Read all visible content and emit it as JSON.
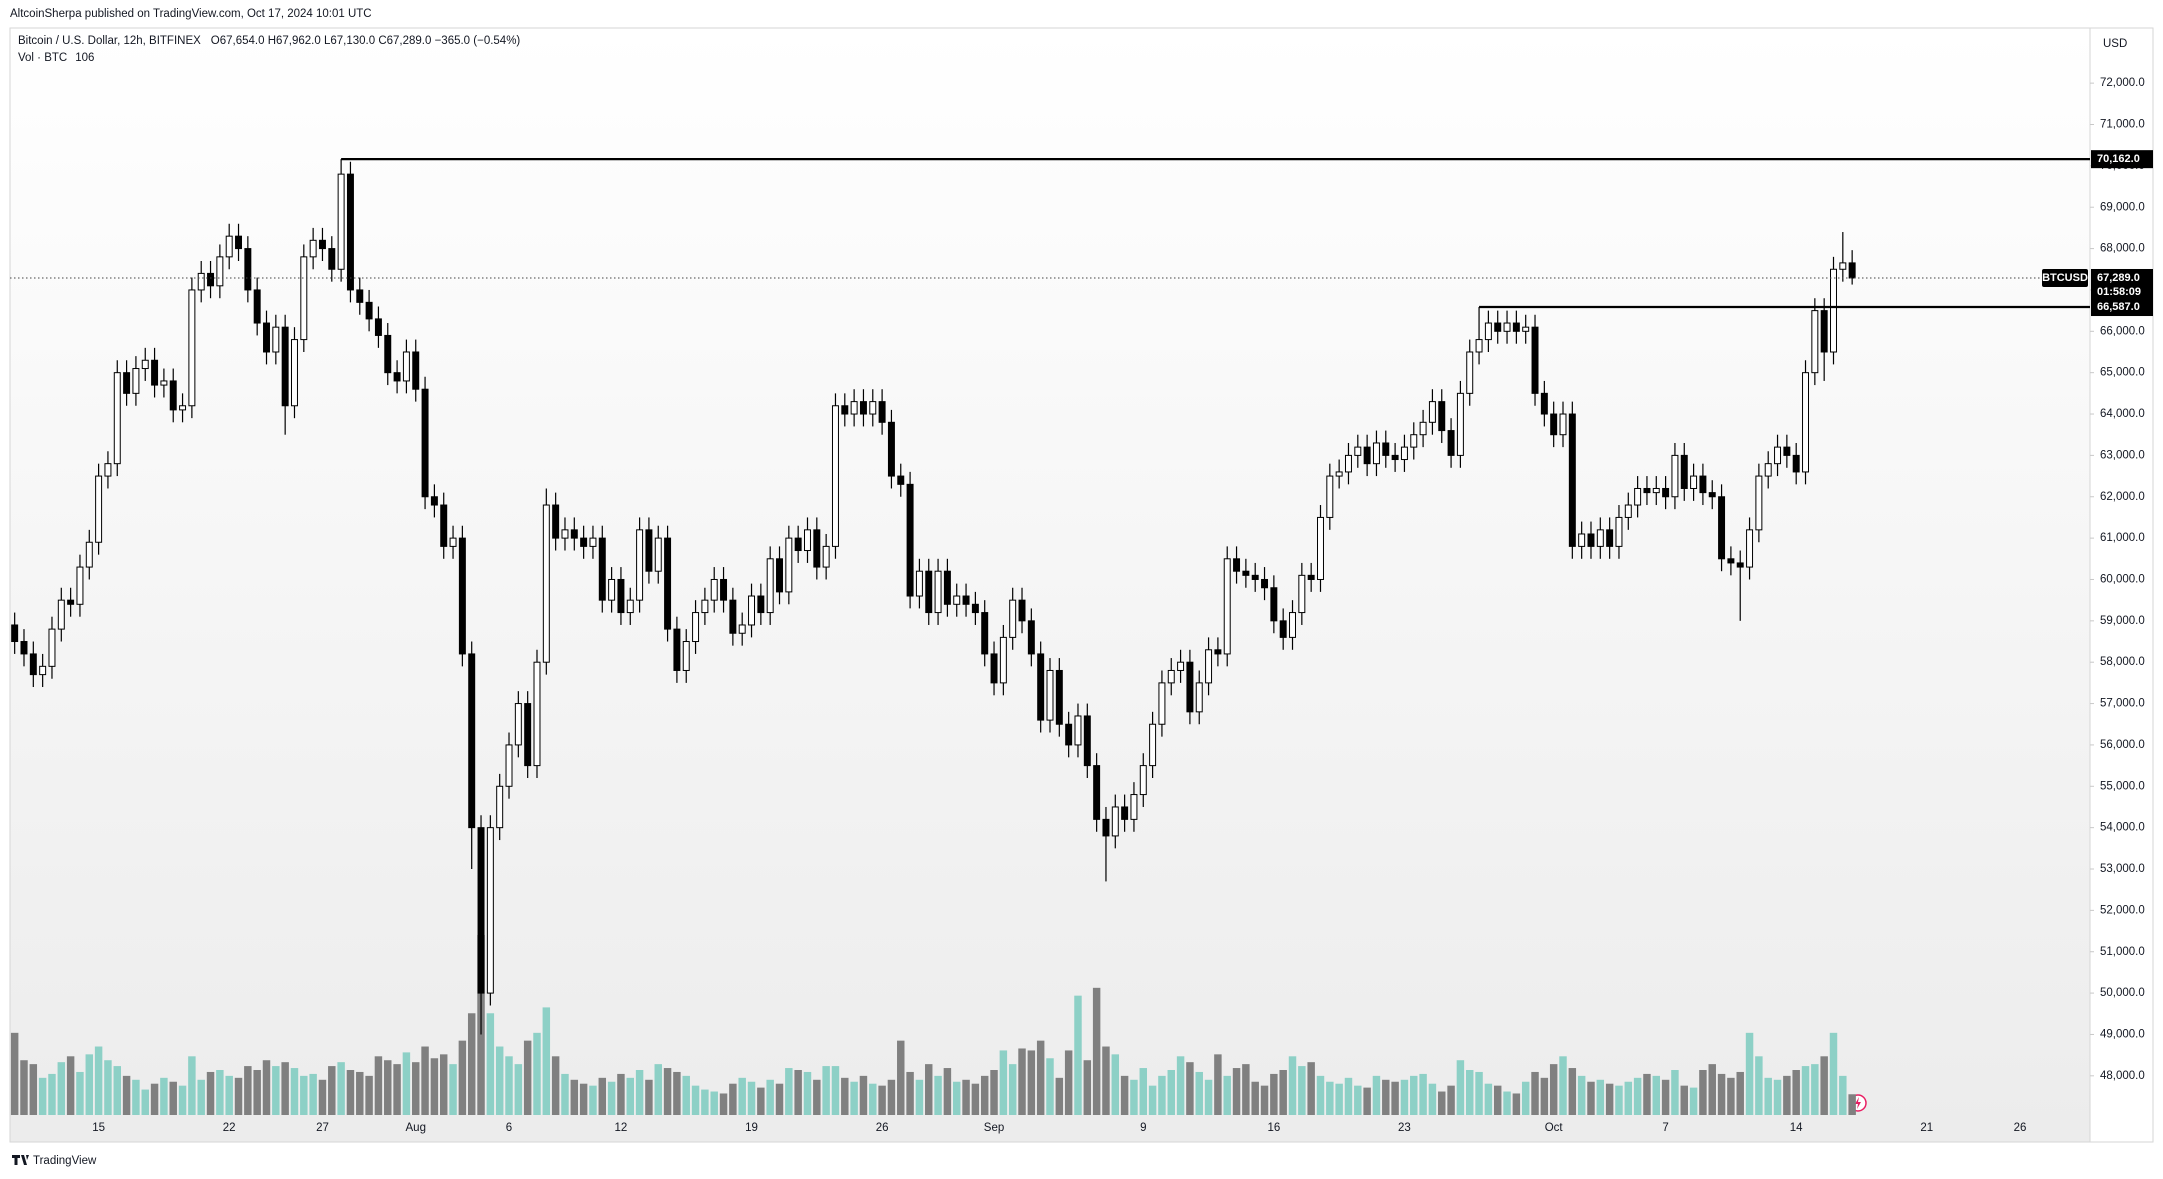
{
  "chart_data": {
    "type": "candlestick",
    "header": "AltcoinSherpa published on TradingView.com, Oct 17, 2024 10:01 UTC",
    "symbol": "Bitcoin / U.S. Dollar, 12h, BITFINEX",
    "ohlc_text": "O67,654.0 H67,962.0 L67,130.0 C67,289.0 −365.0 (−0.54%)",
    "volume_label": "Vol · BTC",
    "currency": "USD",
    "footer": "TradingView",
    "up_color": "#ffffff",
    "down_color": "#000000",
    "volume_up_color": "#8dd0c6",
    "volume_down_color": "#808080",
    "grid": false,
    "ylim": [
      46400,
      73333
    ],
    "yticks": [
      {
        "value": 48000,
        "label": "48,000.0"
      },
      {
        "value": 49000,
        "label": "49,000.0"
      },
      {
        "value": 50000,
        "label": "50,000.0"
      },
      {
        "value": 51000,
        "label": "51,000.0"
      },
      {
        "value": 52000,
        "label": "52,000.0"
      },
      {
        "value": 53000,
        "label": "53,000.0"
      },
      {
        "value": 54000,
        "label": "54,000.0"
      },
      {
        "value": 55000,
        "label": "55,000.0"
      },
      {
        "value": 56000,
        "label": "56,000.0"
      },
      {
        "value": 57000,
        "label": "57,000.0"
      },
      {
        "value": 58000,
        "label": "58,000.0"
      },
      {
        "value": 59000,
        "label": "59,000.0"
      },
      {
        "value": 60000,
        "label": "60,000.0"
      },
      {
        "value": 61000,
        "label": "61,000.0"
      },
      {
        "value": 62000,
        "label": "62,000.0"
      },
      {
        "value": 63000,
        "label": "63,000.0"
      },
      {
        "value": 64000,
        "label": "64,000.0"
      },
      {
        "value": 65000,
        "label": "65,000.0"
      },
      {
        "value": 66000,
        "label": "66,000.0"
      },
      {
        "value": 67000,
        "label": "67,000.0"
      },
      {
        "value": 68000,
        "label": "68,000.0"
      },
      {
        "value": 69000,
        "label": "69,000.0"
      },
      {
        "value": 70000,
        "label": "70,000.0"
      },
      {
        "value": 71000,
        "label": "71,000.0"
      },
      {
        "value": 72000,
        "label": "72,000.0"
      }
    ],
    "levels": [
      {
        "value": 70162,
        "label": "70,162.0"
      },
      {
        "value": 66587,
        "label": "66,587.0"
      }
    ],
    "last_price": {
      "name": "BTCUSD",
      "value": 67289,
      "label": "67,289.0",
      "countdown": "01:58:09"
    },
    "categories": [
      null,
      null,
      null,
      null,
      null,
      null,
      null,
      null,
      null,
      "15",
      null,
      null,
      null,
      null,
      null,
      null,
      null,
      null,
      null,
      null,
      null,
      null,
      null,
      "22",
      null,
      null,
      null,
      null,
      null,
      null,
      null,
      null,
      null,
      "27",
      null,
      null,
      null,
      null,
      null,
      null,
      null,
      null,
      null,
      "Aug",
      null,
      null,
      null,
      null,
      null,
      null,
      null,
      null,
      null,
      "6",
      null,
      null,
      null,
      null,
      null,
      null,
      null,
      null,
      null,
      null,
      null,
      "12",
      null,
      null,
      null,
      null,
      null,
      null,
      null,
      null,
      null,
      null,
      null,
      null,
      null,
      "19",
      null,
      null,
      null,
      null,
      null,
      null,
      null,
      null,
      null,
      null,
      null,
      null,
      null,
      "26",
      null,
      null,
      null,
      null,
      null,
      null,
      null,
      null,
      null,
      null,
      null,
      "Sep",
      null,
      null,
      null,
      null,
      null,
      null,
      null,
      null,
      null,
      null,
      null,
      null,
      null,
      null,
      null,
      "9",
      null,
      null,
      null,
      null,
      null,
      null,
      null,
      null,
      null,
      null,
      null,
      null,
      null,
      "16",
      null,
      null,
      null,
      null,
      null,
      null,
      null,
      null,
      null,
      null,
      null,
      null,
      null,
      "23",
      null,
      null,
      null,
      null,
      null,
      null,
      null,
      null,
      null,
      null,
      null,
      null,
      null,
      null,
      null,
      "Oct",
      null,
      null,
      null,
      null,
      null,
      null,
      null,
      null,
      null,
      null,
      null,
      "7",
      null,
      null,
      null,
      null,
      null,
      null,
      null,
      null,
      null,
      null,
      null,
      null,
      null,
      "14",
      null,
      null,
      null,
      null,
      null,
      null,
      null,
      null,
      null,
      null,
      null,
      null,
      null,
      "21",
      null,
      null,
      null,
      null,
      null,
      null,
      null,
      null,
      null,
      "26",
      null,
      null,
      null,
      null,
      null,
      null,
      null
    ],
    "open": [
      58900,
      58500,
      58200,
      57700,
      57900,
      58800,
      59500,
      59400,
      60300,
      60900,
      62500,
      62800,
      65000,
      64500,
      65100,
      65300,
      64700,
      64800,
      64100,
      64200,
      67000,
      67400,
      67100,
      67800,
      68300,
      68000,
      67000,
      66200,
      65500,
      66100,
      64200,
      65800,
      67800,
      68200,
      68000,
      67500,
      69800,
      67000,
      66700,
      66300,
      65900,
      65000,
      64800,
      65500,
      64600,
      62000,
      61800,
      60800,
      61000,
      58200,
      54000,
      50000,
      54000,
      55000,
      56000,
      57000,
      55500,
      58000,
      61800,
      61000,
      61200,
      61000,
      60800,
      61000,
      59500,
      60000,
      59200,
      59500,
      61200,
      60200,
      61000,
      58800,
      57800,
      58500,
      59200,
      59500,
      60000,
      59500,
      58700,
      58900,
      59600,
      59200,
      60500,
      59700,
      61000,
      60700,
      61200,
      60300,
      60800,
      64200,
      64000,
      64300,
      64000,
      64300,
      63800,
      62500,
      62300,
      59600,
      60200,
      59200,
      60200,
      59400,
      59600,
      59400,
      59200,
      58200,
      57500,
      58600,
      59500,
      59000,
      58200,
      56600,
      57800,
      56500,
      56000,
      56700,
      55500,
      54200,
      53800,
      54500,
      54200,
      54800,
      55500,
      56500,
      57500,
      57800,
      58000,
      56800,
      57500,
      58300,
      58200,
      60500,
      60200,
      60100,
      60000,
      59800,
      59000,
      58600,
      59200,
      60100,
      60000,
      61500,
      62500,
      62600,
      63000,
      63200,
      62800,
      63300,
      63000,
      62900,
      63200,
      63500,
      63800,
      64300,
      63600,
      63000,
      64500,
      65500,
      65800,
      66200,
      66000,
      66200,
      66000,
      66100,
      64500,
      64000,
      63500,
      64000,
      60800,
      61100,
      60800,
      61200,
      60800,
      61500,
      61800,
      62200,
      62100,
      62200,
      62000,
      63000,
      62200,
      62500,
      62100,
      62000,
      60500,
      60400,
      60300,
      61200,
      62500,
      62800,
      63200,
      63000,
      62600,
      65000,
      66500,
      65500,
      67500,
      67654,
      null,
      null,
      null,
      null,
      null,
      null,
      null,
      null,
      null,
      null,
      null,
      null,
      null,
      null,
      null,
      null,
      null,
      null,
      null,
      null,
      null,
      null,
      null,
      null,
      null
    ],
    "high": [
      59200,
      58800,
      58500,
      58200,
      59100,
      59800,
      59800,
      60600,
      61200,
      62800,
      63100,
      65300,
      65300,
      65400,
      65600,
      65600,
      65100,
      65100,
      64500,
      67300,
      67700,
      67700,
      68100,
      68600,
      68600,
      68300,
      67300,
      66500,
      66400,
      66400,
      66100,
      68100,
      68500,
      68500,
      68300,
      70162,
      70100,
      67300,
      67000,
      66600,
      66200,
      65300,
      65800,
      65800,
      64900,
      62300,
      62100,
      61300,
      61300,
      58500,
      54300,
      54300,
      55300,
      56300,
      57300,
      57300,
      58300,
      62200,
      62100,
      61500,
      61500,
      61300,
      61300,
      61300,
      60300,
      60300,
      59800,
      61500,
      61500,
      61300,
      61300,
      59100,
      58800,
      59500,
      59800,
      60300,
      60300,
      59800,
      59200,
      59900,
      59900,
      60800,
      60800,
      61300,
      61300,
      61500,
      61500,
      61100,
      64500,
      64500,
      64600,
      64600,
      64600,
      64600,
      64100,
      62800,
      62600,
      60500,
      60500,
      60500,
      60500,
      59900,
      59900,
      59700,
      59500,
      58500,
      58900,
      59800,
      59800,
      59300,
      58500,
      58100,
      58100,
      56800,
      57000,
      57000,
      55800,
      54500,
      54800,
      54800,
      55100,
      55800,
      56800,
      57800,
      58100,
      58300,
      58300,
      57800,
      58600,
      58600,
      60800,
      60800,
      60500,
      60400,
      60300,
      60100,
      59300,
      59500,
      60400,
      60400,
      61800,
      62800,
      62900,
      63300,
      63500,
      63500,
      63600,
      63600,
      63300,
      63500,
      63800,
      64100,
      64600,
      64600,
      63900,
      64800,
      65800,
      66587,
      66500,
      66500,
      66500,
      66500,
      66400,
      66400,
      64800,
      64300,
      64300,
      64300,
      61400,
      61400,
      61500,
      61500,
      61800,
      62100,
      62500,
      62500,
      62500,
      62500,
      63300,
      63300,
      62800,
      62800,
      62400,
      62300,
      60800,
      60700,
      61500,
      62800,
      63100,
      63500,
      63500,
      63300,
      65300,
      66800,
      66800,
      67800,
      68400,
      67962,
      null,
      null,
      null,
      null,
      null,
      null,
      null,
      null,
      null,
      null,
      null,
      null,
      null,
      null,
      null,
      null,
      null,
      null,
      null,
      null,
      null,
      null,
      null,
      null,
      null
    ],
    "low": [
      58200,
      57900,
      57400,
      57400,
      57600,
      58500,
      59100,
      59100,
      60000,
      60600,
      62200,
      62500,
      64200,
      64200,
      64800,
      64400,
      64400,
      63800,
      63800,
      63900,
      66700,
      66800,
      66800,
      67500,
      67700,
      66700,
      65900,
      65200,
      65200,
      63500,
      63900,
      65500,
      67500,
      67700,
      67200,
      67200,
      66700,
      66400,
      66000,
      65600,
      64700,
      64500,
      64500,
      64300,
      61700,
      61500,
      60500,
      60500,
      57900,
      53000,
      49000,
      49700,
      53700,
      54700,
      55700,
      55200,
      55200,
      57700,
      60700,
      60700,
      60700,
      60500,
      60500,
      59200,
      59200,
      58900,
      58900,
      59200,
      59900,
      59900,
      58500,
      57500,
      57500,
      58200,
      58900,
      59200,
      59200,
      58400,
      58400,
      58600,
      58900,
      58900,
      59400,
      59400,
      60400,
      60400,
      60000,
      60000,
      60500,
      63700,
      63700,
      63700,
      63700,
      63500,
      62200,
      62000,
      59300,
      59300,
      58900,
      58900,
      59100,
      59100,
      59100,
      58900,
      57900,
      57200,
      57200,
      58300,
      58700,
      57900,
      56300,
      56300,
      56200,
      55700,
      55700,
      55200,
      53900,
      52700,
      53500,
      53900,
      53900,
      54500,
      55200,
      56200,
      57200,
      57500,
      56500,
      56500,
      57200,
      57900,
      57900,
      59900,
      59800,
      59700,
      59500,
      58700,
      58300,
      58300,
      58900,
      59700,
      59700,
      61200,
      62200,
      62300,
      62700,
      62500,
      62500,
      62700,
      62600,
      62600,
      62900,
      63200,
      63500,
      63300,
      62700,
      62700,
      64200,
      65200,
      65500,
      65700,
      65700,
      65700,
      65700,
      64200,
      63700,
      63200,
      63200,
      60500,
      60500,
      60500,
      60500,
      60500,
      60500,
      61200,
      61500,
      61800,
      61800,
      61700,
      61700,
      61900,
      61900,
      61800,
      61700,
      60200,
      60100,
      59000,
      60000,
      60900,
      62200,
      62500,
      62700,
      62300,
      62300,
      64700,
      64800,
      65200,
      67200,
      67130,
      null,
      null,
      null,
      null,
      null,
      null,
      null,
      null,
      null,
      null,
      null,
      null,
      null,
      null,
      null,
      null,
      null,
      null,
      null,
      null,
      null,
      null,
      null,
      null,
      null
    ],
    "close": [
      58500,
      58200,
      57700,
      57900,
      58800,
      59500,
      59400,
      60300,
      60900,
      62500,
      62800,
      65000,
      64500,
      65100,
      65300,
      64700,
      64800,
      64100,
      64200,
      67000,
      67400,
      67100,
      67800,
      68300,
      68000,
      67000,
      66200,
      65500,
      66100,
      64200,
      65800,
      67800,
      68200,
      68000,
      67500,
      69800,
      67000,
      66700,
      66300,
      65900,
      65000,
      64800,
      65500,
      64600,
      62000,
      61800,
      60800,
      61000,
      58200,
      54000,
      50000,
      54000,
      55000,
      56000,
      57000,
      55500,
      58000,
      61800,
      61000,
      61200,
      61000,
      60800,
      61000,
      59500,
      60000,
      59200,
      59500,
      61200,
      60200,
      61000,
      58800,
      57800,
      58500,
      59200,
      59500,
      60000,
      59500,
      58700,
      58900,
      59600,
      59200,
      60500,
      59700,
      61000,
      60700,
      61200,
      60300,
      60800,
      64200,
      64000,
      64300,
      64000,
      64300,
      63800,
      62500,
      62300,
      59600,
      60200,
      59200,
      60200,
      59400,
      59600,
      59400,
      59200,
      58200,
      57500,
      58600,
      59500,
      59000,
      58200,
      56600,
      57800,
      56500,
      56000,
      56700,
      55500,
      54200,
      53800,
      54500,
      54200,
      54800,
      55500,
      56500,
      57500,
      57800,
      58000,
      56800,
      57500,
      58300,
      58200,
      60500,
      60200,
      60100,
      60000,
      59800,
      59000,
      58600,
      59200,
      60100,
      60000,
      61500,
      62500,
      62600,
      63000,
      63200,
      62800,
      63300,
      63000,
      62900,
      63200,
      63500,
      63800,
      64300,
      63600,
      63000,
      64500,
      65500,
      65800,
      66200,
      66000,
      66200,
      66000,
      66100,
      64500,
      64000,
      63500,
      64000,
      60800,
      61100,
      60800,
      61200,
      60800,
      61500,
      61800,
      62200,
      62100,
      62200,
      62000,
      63000,
      62200,
      62500,
      62100,
      62000,
      60500,
      60400,
      60300,
      61200,
      62500,
      62800,
      63200,
      63000,
      62600,
      65000,
      66500,
      65500,
      67500,
      67654,
      67289,
      null,
      null,
      null,
      null,
      null,
      null,
      null,
      null,
      null,
      null,
      null,
      null,
      null,
      null,
      null,
      null,
      null,
      null,
      null,
      null,
      null,
      null,
      null,
      null,
      null
    ],
    "volume": [
      420,
      280,
      260,
      190,
      210,
      270,
      300,
      220,
      310,
      350,
      280,
      250,
      200,
      180,
      130,
      160,
      190,
      170,
      150,
      300,
      180,
      220,
      230,
      200,
      190,
      250,
      230,
      280,
      250,
      270,
      240,
      200,
      210,
      180,
      250,
      270,
      230,
      220,
      200,
      300,
      280,
      260,
      320,
      270,
      350,
      290,
      310,
      260,
      380,
      520,
      920,
      520,
      350,
      300,
      260,
      380,
      420,
      550,
      300,
      210,
      180,
      160,
      150,
      190,
      170,
      210,
      190,
      230,
      180,
      260,
      240,
      220,
      200,
      150,
      130,
      120,
      110,
      160,
      190,
      170,
      140,
      180,
      160,
      240,
      230,
      220,
      180,
      250,
      250,
      190,
      170,
      200,
      160,
      150,
      180,
      380,
      220,
      180,
      260,
      200,
      240,
      170,
      180,
      160,
      200,
      230,
      330,
      260,
      340,
      330,
      380,
      290,
      190,
      330,
      610,
      280,
      650,
      350,
      310,
      200,
      180,
      240,
      150,
      200,
      230,
      300,
      270,
      220,
      180,
      310,
      200,
      240,
      260,
      170,
      150,
      210,
      230,
      300,
      250,
      270,
      200,
      170,
      160,
      190,
      150,
      140,
      200,
      180,
      170,
      180,
      200,
      210,
      160,
      120,
      150,
      280,
      230,
      220,
      160,
      150,
      120,
      110,
      170,
      220,
      190,
      260,
      300,
      240,
      200,
      170,
      180,
      160,
      150,
      170,
      190,
      210,
      200,
      180,
      230,
      150,
      140,
      230,
      260,
      210,
      190,
      220,
      420,
      300,
      190,
      180,
      200,
      230,
      250,
      260,
      300,
      420,
      200,
      106,
      null,
      null,
      null,
      null,
      null,
      null,
      null,
      null,
      null,
      null,
      null,
      null,
      null,
      null,
      null,
      null,
      null,
      null,
      null,
      null,
      null,
      null,
      null,
      null,
      null
    ]
  }
}
